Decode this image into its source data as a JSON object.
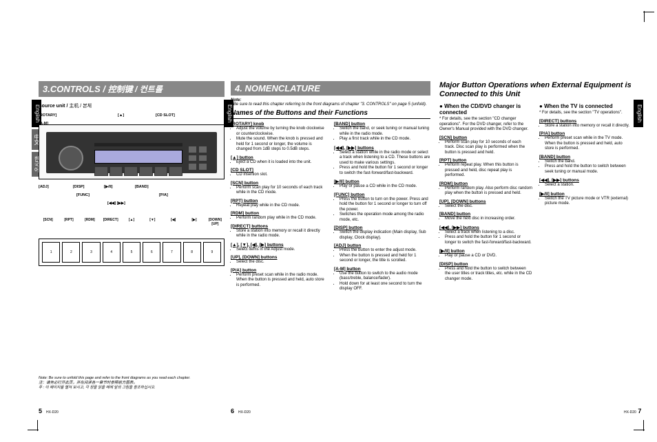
{
  "pageLeft": {
    "heading": "3.CONTROLS /",
    "headingCjk": "控制键 / 컨트롤",
    "sourceUnit": "Source unit /",
    "sourceUnitCjk": "主机 / 본체",
    "callouts": {
      "rotary": "[ROTARY]",
      "am": "[A-M]",
      "eject": "[▲]",
      "cdslot": "[CD SLOT]",
      "adj": "[ADJ]",
      "disp": "[DISP]",
      "func": "[FUNC]",
      "playpause": "[▶/II]",
      "band": "[BAND]",
      "pa": "[P/A]",
      "seekL": "[◀◀]",
      "seekR": "[▶▶]"
    },
    "remoteLabels": [
      "[SCN]",
      "[RPT]",
      "[RDM]",
      "[DIRECT]",
      "[▲]",
      "[▼]",
      "[◀]",
      "[▶]",
      "[DOWN] [UP]"
    ],
    "remoteBtns": [
      "1",
      "2",
      "3",
      "4",
      "5",
      "6",
      "7",
      "8",
      "9"
    ],
    "footnote1": "Note: Be sure to unfold this page and refer to the front diagrams as you read each chapter.",
    "footnote2": "注：请务必打开此页，并在阅读各一章节时参照前方图表。",
    "footnote3": "주 : 이 페이지를 펼쳐 보시고, 각 장을 읽을 때에 앞의 그림을 참조하십시오."
  },
  "langTabs": {
    "en": "English",
    "zh": "中文",
    "ko": "한국어"
  },
  "pageMid": {
    "heading": "4. NOMENCLATURE",
    "noteHead": "Note:",
    "noteBody": "Be sure to read this chapter referring to the front diagrams of chapter \"3. CONTROLS\" on page 5 (unfold).",
    "namesTitle": "Names of the Buttons and their Functions",
    "col1": [
      {
        "h": "[ROTARY] knob",
        "b": [
          "Adjust the volume by turning the knob clockwise or counterclockwise.",
          "Mute the sound. When the knob is pressed and held for 1 second or longer, the volume is changed from 1dB steps to 0.5dB steps."
        ]
      },
      {
        "h": "[▲] button",
        "b": [
          "Eject a CD when it is loaded into the unit."
        ]
      },
      {
        "h": "[CD SLOT]",
        "b": [
          "CD insertion slot."
        ]
      },
      {
        "h": "[SCN] button",
        "b": [
          "Perform scan play for 10 seconds of each track while in the CD mode."
        ]
      },
      {
        "h": "[RPT] button",
        "b": [
          "Repeat play while in the CD mode."
        ]
      },
      {
        "h": "[RDM] button",
        "b": [
          "Perform random play while in the CD mode."
        ]
      },
      {
        "h": "[DIRECT] buttons",
        "b": [
          "Store a station into memory or recall it directly while in the radio mode."
        ]
      },
      {
        "h": "[▲], [▼], [◀], [▶] buttons",
        "b": [
          "Select items in the Adjust mode."
        ]
      },
      {
        "h": "[UP], [DOWN] buttons",
        "b": [
          "Select the disc."
        ]
      },
      {
        "h": "[P/A] button",
        "b": [
          "Perform preset scan while in the radio mode. When the button is pressed and held, auto store is performed."
        ]
      }
    ],
    "col2": [
      {
        "h": "[BAND] button",
        "b": [
          "Switch the band, or seek tuning or manual tuning while in the radio mode.",
          "Play a first track while in the CD mode."
        ]
      },
      {
        "h": "[◀◀], [▶▶] buttons",
        "b": [
          "Select a station while in the radio mode or select a track when listening to a CD. These buttons are used to make various settings.",
          "Press and hold the button for 1 second or longer to switch the fast-forward/fast-backward."
        ]
      },
      {
        "h": "[▶/II] button",
        "b": [
          "Play or pause a CD while in the CD mode."
        ]
      },
      {
        "h": "[FUNC] button",
        "b": [
          "Press the button to turn on the power. Press and hold the button for 1 second or longer to turn off the power.",
          "Switches the operation mode among the radio mode, etc."
        ]
      },
      {
        "h": "[DISP] button",
        "b": [
          "Switch the display indication (Main display, Sub display, Clock display)."
        ]
      },
      {
        "h": "[ADJ] button",
        "b": [
          "Press the button to enter the adjust mode.",
          "When the button is pressed and held for 1 second or longer, the title is scrolled."
        ]
      },
      {
        "h": "[A-M] button",
        "b": [
          "Use the button to switch to the audio mode (bass/treble, balance/fader).",
          "Hold down for at least one second to turn the display OFF."
        ]
      }
    ]
  },
  "pageRight": {
    "majorTitle": "Major Button Operations when External Equipment is Connected to this Unit",
    "sec1": {
      "title": "When the CD/DVD changer is connected",
      "note": "For details, see the section \"CD changer operations\". For the DVD changer, refer to the Owner's Manual provided with the DVD changer.",
      "items": [
        {
          "h": "[SCN] button",
          "b": [
            "Perform scan play for 10 seconds of each track. Disc scan play is performed when the button is pressed and held."
          ]
        },
        {
          "h": "[RPT] button",
          "b": [
            "Perform repeat play. When this button is pressed and held, disc repeat play is performed."
          ]
        },
        {
          "h": "[RDM] button",
          "b": [
            "Perform random play. Also perform disc random play when the button is pressed and held."
          ]
        },
        {
          "h": "[UP], [DOWN] buttons",
          "b": [
            "Select the disc."
          ]
        },
        {
          "h": "[BAND] button",
          "b": [
            "Move the next disc in increasing order."
          ]
        },
        {
          "h": "[◀◀], [▶▶] buttons",
          "b": [
            "Select a track when listening to a disc.",
            "Press and hold the button for 1 second or longer to switch the fast-forward/fast-backward."
          ]
        },
        {
          "h": "[▶/II] button",
          "b": [
            "Play or pause a CD or DVD."
          ]
        },
        {
          "h": "[DISP] button",
          "b": [
            "Press and hold the button to switch between the user titles or track titles, etc. while in the CD changer mode."
          ]
        }
      ]
    },
    "sec2": {
      "title": "When the TV is connected",
      "note": "For details, see the section \"TV operations\".",
      "items": [
        {
          "h": "[DIRECT] buttons",
          "b": [
            "Store a station into memory or recall it directly."
          ]
        },
        {
          "h": "[P/A] button",
          "b": [
            "Perform preset scan while in the TV mode. When the button is pressed and held, auto store is performed."
          ]
        },
        {
          "h": "[BAND] button",
          "b": [
            "Switch the band.",
            "Press and hold the button to switch between seek tuning or manual mode."
          ]
        },
        {
          "h": "[◀◀], [▶▶] buttons",
          "b": [
            "Select a station."
          ]
        },
        {
          "h": "[▶/II] button",
          "b": [
            "Switch the TV picture mode or VTR (external) picture mode."
          ]
        }
      ]
    }
  },
  "pageNums": {
    "p5": "5",
    "p6": "6",
    "p7": "7",
    "model": "HX-D20"
  }
}
